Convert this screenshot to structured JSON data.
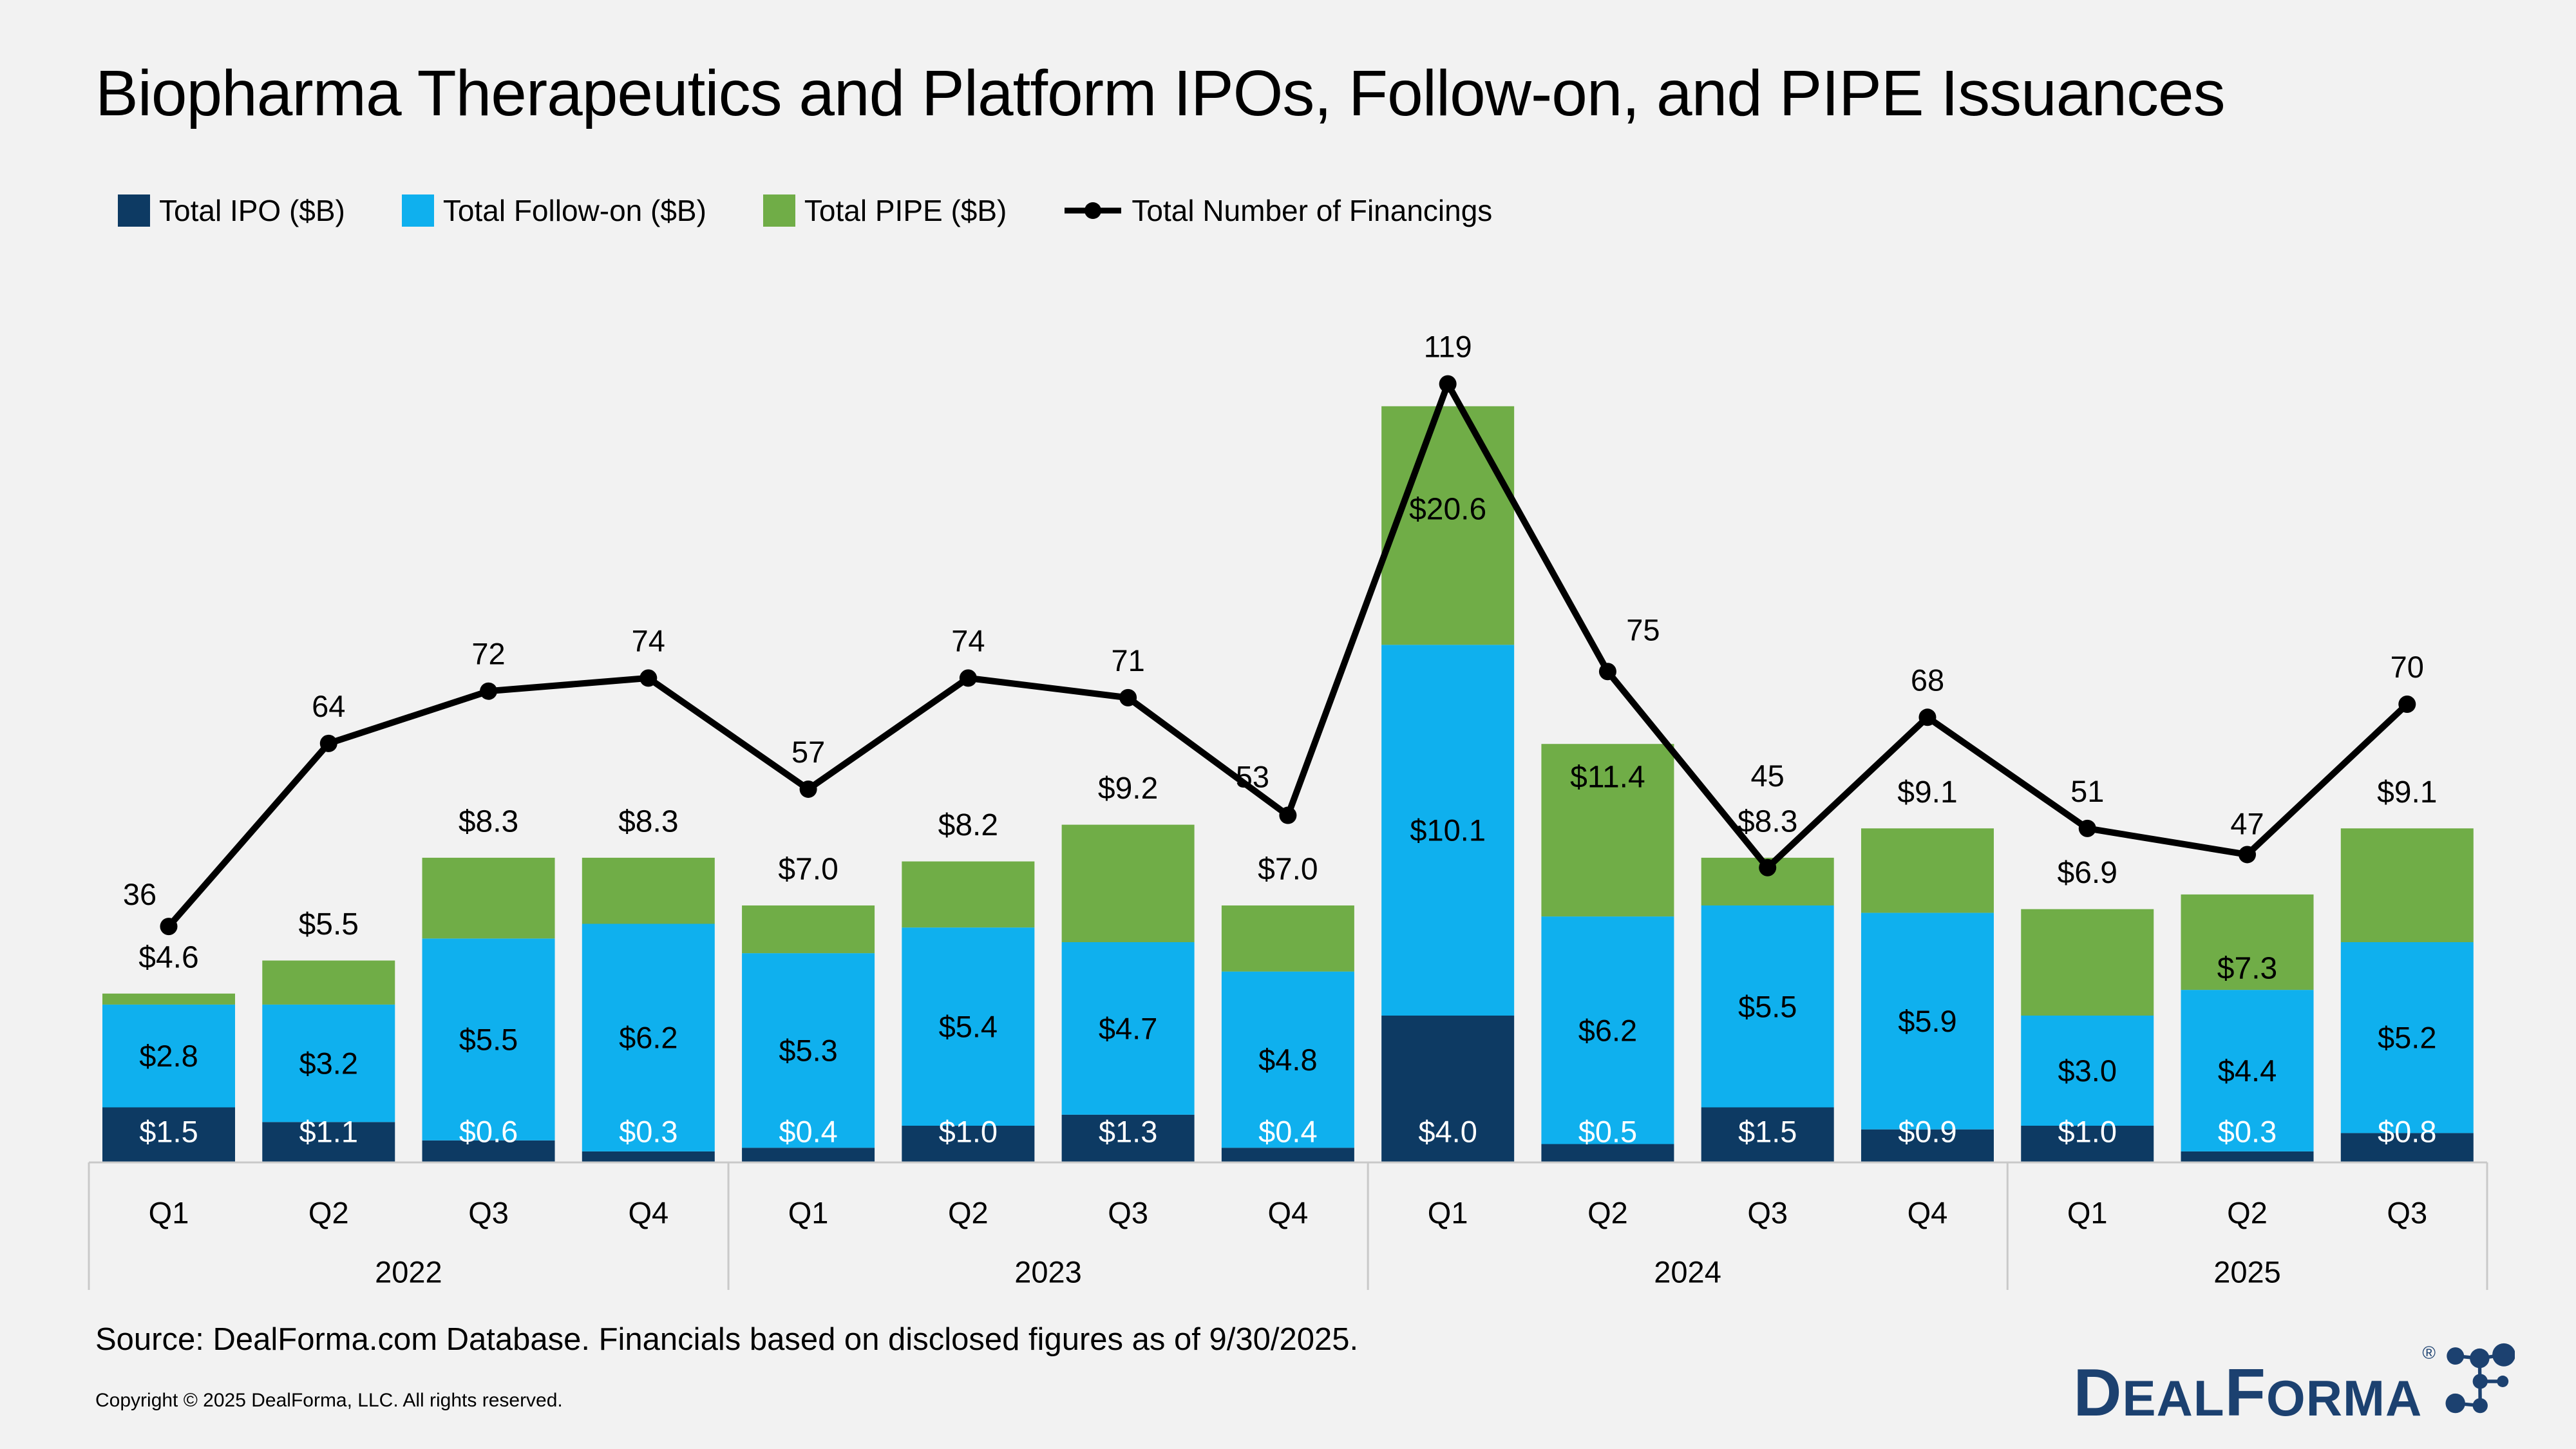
{
  "title": "Biopharma Therapeutics and Platform IPOs, Follow-on, and PIPE Issuances",
  "legend": [
    {
      "label": "Total IPO ($B)",
      "color": "#0D3A63",
      "type": "square"
    },
    {
      "label": "Total Follow-on ($B)",
      "color": "#0FB0EE",
      "type": "square"
    },
    {
      "label": "Total PIPE ($B)",
      "color": "#70AD47",
      "type": "square"
    },
    {
      "label": "Total Number of Financings",
      "color": "#000000",
      "type": "line-marker"
    }
  ],
  "colors": {
    "ipo": "#0D3A63",
    "follow_on": "#0FB0EE",
    "pipe": "#70AD47",
    "line": "#000000",
    "background": "#F2F2F2",
    "axis": "#C9C9C9",
    "label_dark": "#000000",
    "label_light": "#FFFFFF",
    "logo_navy": "#1C4170"
  },
  "chart_data": {
    "type": "bar+line combo, stacked bars",
    "title": "Biopharma Therapeutics and Platform IPOs, Follow-on, and PIPE Issuances",
    "categories": [
      "Q1 2022",
      "Q2 2022",
      "Q3 2022",
      "Q4 2022",
      "Q1 2023",
      "Q2 2023",
      "Q3 2023",
      "Q4 2023",
      "Q1 2024",
      "Q2 2024",
      "Q3 2024",
      "Q4 2024",
      "Q1 2025",
      "Q2 2025",
      "Q3 2025"
    ],
    "quarter_labels": [
      "Q1",
      "Q2",
      "Q3",
      "Q4",
      "Q1",
      "Q2",
      "Q3",
      "Q4",
      "Q1",
      "Q2",
      "Q3",
      "Q4",
      "Q1",
      "Q2",
      "Q3"
    ],
    "year_groups": [
      {
        "label": "2022",
        "quarters": 4
      },
      {
        "label": "2023",
        "quarters": 4
      },
      {
        "label": "2024",
        "quarters": 4
      },
      {
        "label": "2025",
        "quarters": 3
      }
    ],
    "series": [
      {
        "name": "Total IPO ($B)",
        "color": "#0D3A63",
        "values": [
          1.5,
          1.1,
          0.6,
          0.3,
          0.4,
          1.0,
          1.3,
          0.4,
          4.0,
          0.5,
          1.5,
          0.9,
          1.0,
          0.3,
          0.8
        ],
        "labels": [
          "$1.5",
          "$1.1",
          "$0.6",
          "$0.3",
          "$0.4",
          "$1.0",
          "$1.3",
          "$0.4",
          "$4.0",
          "$0.5",
          "$1.5",
          "$0.9",
          "$1.0",
          "$0.3",
          "$0.8"
        ]
      },
      {
        "name": "Total Follow-on ($B)",
        "color": "#0FB0EE",
        "values": [
          2.8,
          3.2,
          5.5,
          6.2,
          5.3,
          5.4,
          4.7,
          4.8,
          10.1,
          6.2,
          5.5,
          5.9,
          3.0,
          4.4,
          5.2
        ],
        "labels": [
          "$2.8",
          "$3.2",
          "$5.5",
          "$6.2",
          "$5.3",
          "$5.4",
          "$4.7",
          "$4.8",
          "$10.1",
          "$6.2",
          "$5.5",
          "$5.9",
          "$3.0",
          "$4.4",
          "$5.2"
        ]
      },
      {
        "name": "Total PIPE ($B)",
        "color": "#70AD47",
        "values": [
          0.3,
          1.2,
          2.2,
          1.8,
          1.3,
          1.8,
          3.2,
          1.8,
          6.5,
          4.7,
          1.3,
          2.3,
          2.9,
          2.6,
          3.1
        ],
        "labels": [
          "",
          "",
          "",
          "",
          "",
          "",
          "",
          "",
          "",
          "",
          "",
          "",
          "",
          "",
          ""
        ]
      }
    ],
    "stack_total_labels": [
      "$4.6",
      "$5.5",
      "$8.3",
      "$8.3",
      "$7.0",
      "$8.2",
      "$9.2",
      "$7.0",
      "$20.6",
      "$11.4",
      "$8.3",
      "$9.1",
      "$6.9",
      "$7.3",
      "$9.1"
    ],
    "stack_totals": [
      4.6,
      5.5,
      8.3,
      8.3,
      7.0,
      8.2,
      9.2,
      7.0,
      20.6,
      11.4,
      8.3,
      9.1,
      6.9,
      7.3,
      9.1
    ],
    "line_series": {
      "name": "Total Number of Financings",
      "color": "#000000",
      "values": [
        36,
        64,
        72,
        74,
        57,
        74,
        71,
        53,
        119,
        75,
        45,
        68,
        51,
        47,
        70
      ]
    },
    "ylim": [
      0,
      22
    ],
    "gridlines": false,
    "legend_position": "top-left"
  },
  "source": "Source: DealForma.com Database. Financials based on disclosed figures as of 9/30/2025.",
  "copyright": "Copyright © 2025 DealForma, LLC. All rights reserved.",
  "logo": {
    "part_d": "D",
    "part_eal": "EAL",
    "part_f": "F",
    "part_orma": "ORMA",
    "registered": "®"
  }
}
